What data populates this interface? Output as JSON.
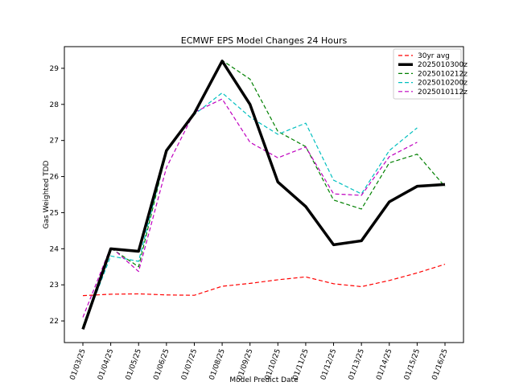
{
  "chart_data": {
    "type": "line",
    "title": "ECMWF EPS Model Changes 24 Hours",
    "xlabel": "Model Predict Date",
    "ylabel": "Gas Weighted TDD",
    "categories": [
      "01/03/25",
      "01/04/25",
      "01/05/25",
      "01/06/25",
      "01/07/25",
      "01/08/25",
      "01/09/25",
      "01/10/25",
      "01/11/25",
      "01/12/25",
      "01/13/25",
      "01/14/25",
      "01/15/25",
      "01/16/25"
    ],
    "ylim": [
      21.4,
      29.6
    ],
    "yticks": [
      22,
      23,
      24,
      25,
      26,
      27,
      28,
      29
    ],
    "legend_position": "top-right",
    "series": [
      {
        "name": "30yr avg",
        "color": "#ff0000",
        "style": "dashed",
        "width": 1.2,
        "values": [
          22.7,
          22.74,
          22.75,
          22.72,
          22.71,
          22.96,
          23.04,
          23.14,
          23.22,
          23.03,
          22.95,
          23.12,
          23.33,
          23.57
        ]
      },
      {
        "name": "2025010300z",
        "color": "#000000",
        "style": "solid",
        "width": 3.5,
        "values": [
          21.77,
          24.0,
          23.93,
          26.72,
          27.75,
          29.2,
          28.0,
          25.85,
          25.17,
          24.11,
          24.22,
          25.3,
          25.73,
          25.78
        ]
      },
      {
        "name": "2025010212z",
        "color": "#008000",
        "style": "dashed",
        "width": 1.2,
        "values": [
          21.85,
          24.02,
          23.5,
          26.68,
          27.75,
          29.22,
          28.7,
          27.25,
          26.83,
          25.35,
          25.1,
          26.38,
          26.62,
          25.72
        ]
      },
      {
        "name": "2025010200z",
        "color": "#00bfbf",
        "style": "dashed",
        "width": 1.2,
        "values": [
          21.8,
          23.8,
          23.65,
          26.68,
          27.72,
          28.32,
          27.65,
          27.17,
          27.48,
          25.9,
          25.52,
          26.72,
          27.35,
          null
        ]
      },
      {
        "name": "2025010112z",
        "color": "#bf00bf",
        "style": "dashed",
        "width": 1.2,
        "values": [
          22.1,
          24.05,
          23.37,
          26.25,
          27.78,
          28.15,
          26.95,
          26.52,
          26.82,
          25.52,
          25.48,
          26.55,
          26.95,
          null
        ]
      }
    ]
  }
}
